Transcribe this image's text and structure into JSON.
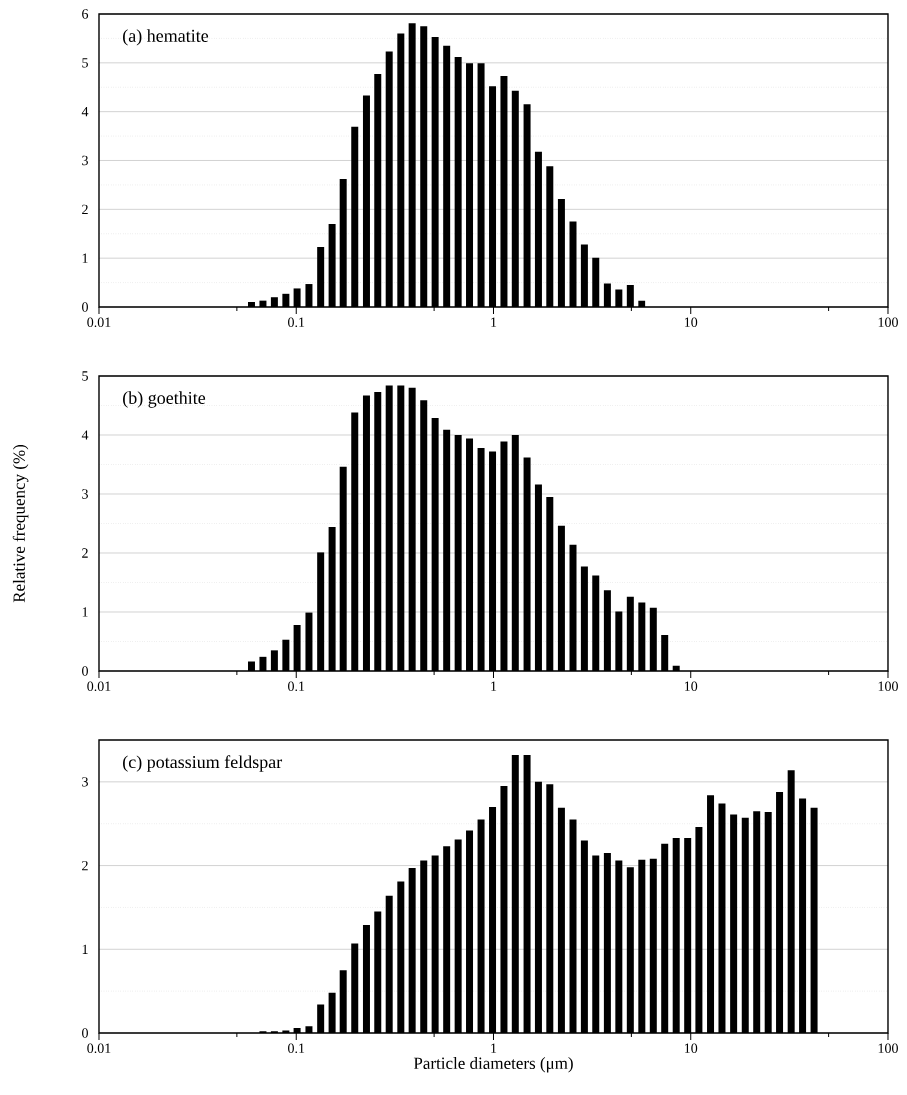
{
  "chart_data": [
    {
      "type": "bar",
      "title": "(a) hematite",
      "color": "#000000",
      "log": "x",
      "grid": "y",
      "x": [
        0.0593,
        0.0678,
        0.0775,
        0.0886,
        0.101,
        0.116,
        0.133,
        0.152,
        0.173,
        0.198,
        0.227,
        0.259,
        0.296,
        0.339,
        0.387,
        0.443,
        0.506,
        0.579,
        0.662,
        0.756,
        0.865,
        0.989,
        1.13,
        1.29,
        1.48,
        1.69,
        1.93,
        2.21,
        2.53,
        2.89,
        3.3,
        3.78,
        4.32,
        4.94,
        5.65
      ],
      "values": [
        0.1,
        0.13,
        0.2,
        0.27,
        0.38,
        0.47,
        1.23,
        1.7,
        2.62,
        3.69,
        4.33,
        4.77,
        5.23,
        5.6,
        5.81,
        5.75,
        5.53,
        5.35,
        5.12,
        4.99,
        4.99,
        4.52,
        4.73,
        4.43,
        4.15,
        3.18,
        2.88,
        2.21,
        1.75,
        1.28,
        1.01,
        0.48,
        0.36,
        0.45,
        0.13
      ],
      "xlim": [
        0.01,
        100
      ],
      "xticks": [
        0.01,
        0.1,
        1,
        10,
        100,
        {
          "value": 0.05,
          "label": null
        },
        {
          "value": 0.5,
          "label": null
        },
        {
          "value": 5,
          "label": null
        },
        {
          "value": 50,
          "label": null
        }
      ],
      "ylim": [
        0,
        6
      ],
      "yticks": [
        0,
        1,
        2,
        3,
        4,
        5,
        6,
        {
          "value": 0.5,
          "label": null
        },
        {
          "value": 1.5,
          "label": null
        },
        {
          "value": 2.5,
          "label": null
        },
        {
          "value": 3.5,
          "label": null
        },
        {
          "value": 4.5,
          "label": null
        },
        {
          "value": 5.5,
          "label": null
        }
      ]
    },
    {
      "type": "bar",
      "title": "(b) goethite",
      "ylabel": "Relative frequency (%)",
      "color": "#000000",
      "log": "x",
      "grid": "y",
      "x": [
        0.0593,
        0.0678,
        0.0775,
        0.0886,
        0.101,
        0.116,
        0.133,
        0.152,
        0.173,
        0.198,
        0.227,
        0.259,
        0.296,
        0.339,
        0.387,
        0.443,
        0.506,
        0.579,
        0.662,
        0.756,
        0.865,
        0.989,
        1.13,
        1.29,
        1.48,
        1.69,
        1.93,
        2.21,
        2.53,
        2.89,
        3.3,
        3.78,
        4.32,
        4.94,
        5.65,
        6.46,
        7.38,
        8.44
      ],
      "values": [
        0.16,
        0.24,
        0.35,
        0.53,
        0.78,
        0.99,
        2.01,
        2.44,
        3.46,
        4.38,
        4.67,
        4.73,
        4.84,
        4.84,
        4.8,
        4.59,
        4.29,
        4.09,
        4.0,
        3.94,
        3.78,
        3.72,
        3.89,
        4.0,
        3.62,
        3.16,
        2.95,
        2.46,
        2.14,
        1.77,
        1.62,
        1.37,
        1.01,
        1.26,
        1.16,
        1.07,
        0.61,
        0.09
      ],
      "xlim": [
        0.01,
        100
      ],
      "xticks": [
        0.01,
        0.1,
        1,
        10,
        100,
        {
          "value": 0.05,
          "label": null
        },
        {
          "value": 0.5,
          "label": null
        },
        {
          "value": 5,
          "label": null
        },
        {
          "value": 50,
          "label": null
        }
      ],
      "ylim": [
        0,
        5
      ],
      "yticks": [
        0,
        1,
        2,
        3,
        4,
        5,
        {
          "value": 0.5,
          "label": null
        },
        {
          "value": 1.5,
          "label": null
        },
        {
          "value": 2.5,
          "label": null
        },
        {
          "value": 3.5,
          "label": null
        },
        {
          "value": 4.5,
          "label": null
        }
      ]
    },
    {
      "type": "bar",
      "title": "(c) potassium feldspar",
      "xlabel": "Particle diameters  (μm)",
      "color": "#000000",
      "log": "x",
      "grid": "y",
      "x": [
        0.0678,
        0.0775,
        0.0886,
        0.101,
        0.116,
        0.133,
        0.152,
        0.173,
        0.198,
        0.227,
        0.259,
        0.296,
        0.339,
        0.387,
        0.443,
        0.506,
        0.579,
        0.662,
        0.756,
        0.865,
        0.989,
        1.13,
        1.29,
        1.48,
        1.69,
        1.93,
        2.21,
        2.53,
        2.89,
        3.3,
        3.78,
        4.32,
        4.94,
        5.65,
        6.46,
        7.38,
        8.44,
        9.65,
        11.0,
        12.6,
        14.4,
        16.5,
        18.9,
        21.6,
        24.7,
        28.2,
        32.3,
        36.9,
        42.2
      ],
      "values": [
        0.02,
        0.02,
        0.03,
        0.06,
        0.08,
        0.34,
        0.48,
        0.75,
        1.07,
        1.29,
        1.45,
        1.64,
        1.81,
        1.97,
        2.06,
        2.12,
        2.23,
        2.31,
        2.42,
        2.55,
        2.7,
        2.95,
        3.32,
        3.32,
        3.0,
        2.97,
        2.69,
        2.55,
        2.3,
        2.12,
        2.15,
        2.06,
        1.98,
        2.07,
        2.08,
        2.26,
        2.33,
        2.33,
        2.46,
        2.84,
        2.74,
        2.61,
        2.57,
        2.65,
        2.64,
        2.88,
        3.14,
        2.8,
        2.69
      ],
      "xlim": [
        0.01,
        100
      ],
      "xticks": [
        0.01,
        0.1,
        1,
        10,
        100,
        {
          "value": 0.05,
          "label": null
        },
        {
          "value": 0.5,
          "label": null
        },
        {
          "value": 5,
          "label": null
        },
        {
          "value": 50,
          "label": null
        }
      ],
      "ylim": [
        0,
        3.5
      ],
      "yticks": [
        0,
        1,
        2,
        3,
        {
          "value": 0.5,
          "label": null
        },
        {
          "value": 1.5,
          "label": null
        },
        {
          "value": 2.5,
          "label": null
        }
      ]
    }
  ]
}
